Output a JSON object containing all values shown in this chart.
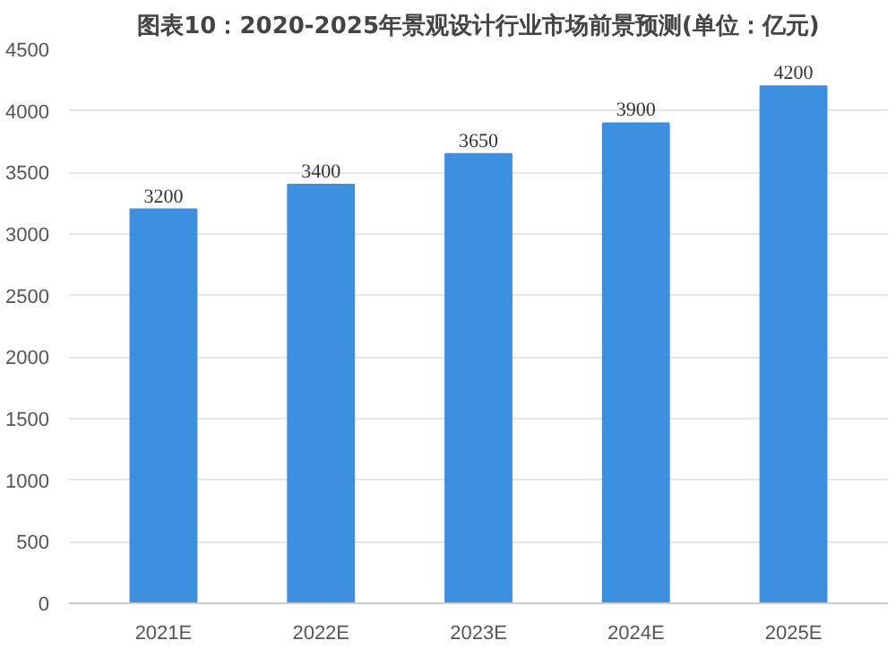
{
  "chart_data": {
    "type": "bar",
    "title": "图表10：2020-2025年景观设计行业市场前景预测(单位：亿元)",
    "categories": [
      "2021E",
      "2022E",
      "2023E",
      "2024E",
      "2025E"
    ],
    "values": [
      3200,
      3400,
      3650,
      3900,
      4200
    ],
    "color": "#3d8fe0",
    "ylim": [
      0,
      4500
    ],
    "yticks": [
      0,
      500,
      1000,
      1500,
      2000,
      2500,
      3000,
      3500,
      4000,
      4500
    ],
    "grid": "y",
    "data_labels": true
  }
}
